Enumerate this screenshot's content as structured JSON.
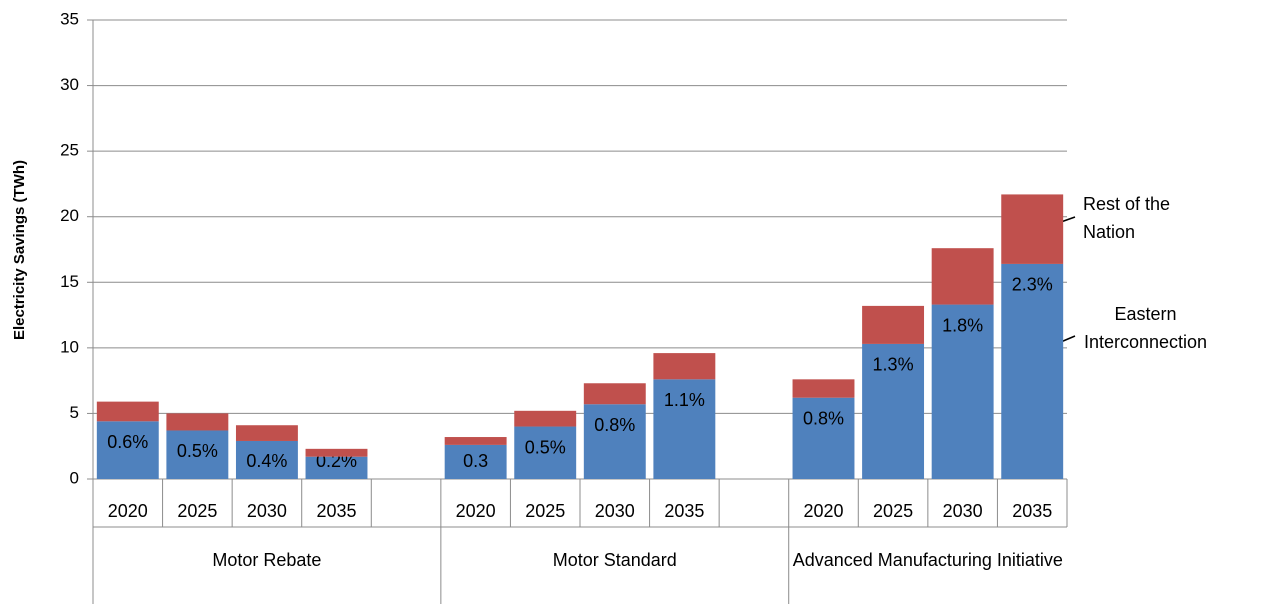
{
  "chart_data": {
    "type": "stacked-bar",
    "y_label": "Electricity Savings (TWh)",
    "groups": [
      {
        "name": "Motor Rebate",
        "categories": [
          "2020",
          "2025",
          "2030",
          "2035"
        ]
      },
      {
        "name": "Motor Standard",
        "categories": [
          "2020",
          "2025",
          "2030",
          "2035"
        ]
      },
      {
        "name": "Advanced Manufacturing Initiative",
        "categories": [
          "2020",
          "2025",
          "2030",
          "2035"
        ]
      }
    ],
    "series": [
      {
        "name": "Eastern Interconnection",
        "color": "#4f81bd",
        "values": [
          4.4,
          3.7,
          2.9,
          1.7,
          2.6,
          4.0,
          5.7,
          7.6,
          6.2,
          10.3,
          13.3,
          16.4
        ],
        "annotations": [
          "0.6%",
          "0.5%",
          "0.4%",
          "0.2%",
          "0.3",
          "0.5%",
          "0.8%",
          "1.1%",
          "0.8%",
          "1.3%",
          "1.8%",
          "2.3%"
        ]
      },
      {
        "name": "Rest of the Nation",
        "color": "#c0504d",
        "values": [
          1.5,
          1.3,
          1.2,
          0.6,
          0.6,
          1.2,
          1.6,
          2.0,
          1.4,
          2.9,
          4.3,
          5.3
        ]
      }
    ],
    "ylim": [
      0,
      35
    ],
    "yticks": [
      0,
      5,
      10,
      15,
      20,
      25,
      30,
      35
    ],
    "grid": true
  }
}
